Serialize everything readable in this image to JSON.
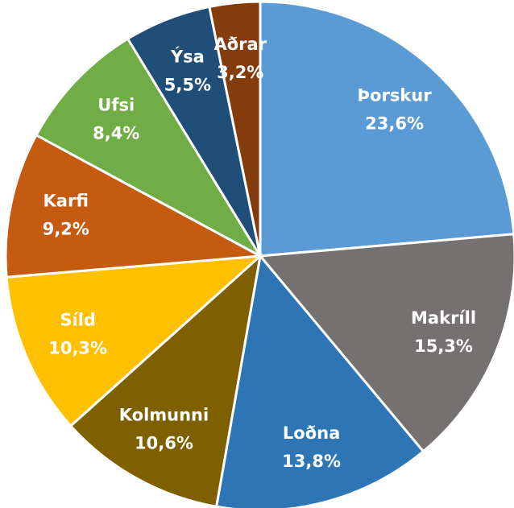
{
  "chart_data": {
    "type": "pie",
    "categories": [
      "Þorskur",
      "Makríll",
      "Loðna",
      "Kolmunni",
      "Síld",
      "Karfi",
      "Ufsi",
      "Ýsa",
      "Aðrar"
    ],
    "values": [
      23.6,
      15.3,
      13.8,
      10.6,
      10.3,
      9.2,
      8.4,
      5.5,
      3.2
    ],
    "value_labels": [
      "23,6%",
      "15,3%",
      "13,8%",
      "10,6%",
      "10,3%",
      "9,2%",
      "8,4%",
      "5,5%",
      "3,2%"
    ],
    "colors": [
      "#5b9bd5",
      "#767171",
      "#2e75b6",
      "#7f6000",
      "#ffc000",
      "#c55a11",
      "#70ad47",
      "#1f4e79",
      "#843c0c"
    ]
  }
}
